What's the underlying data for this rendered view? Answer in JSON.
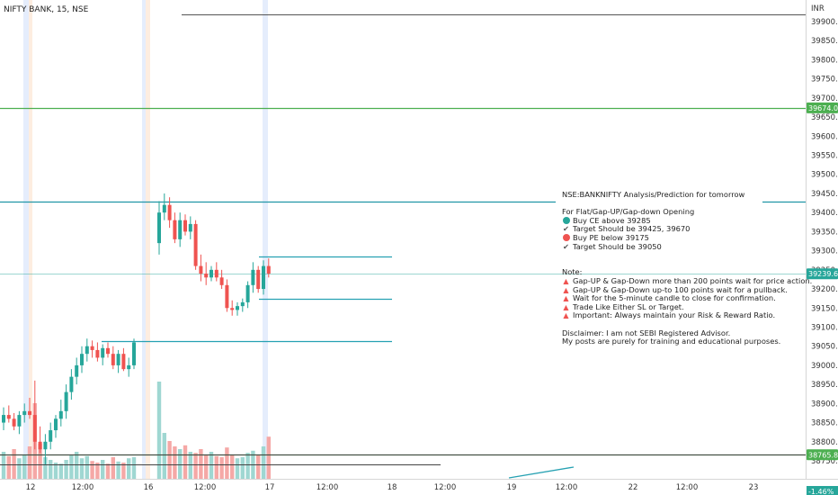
{
  "chart_data": {
    "type": "candlestick",
    "title": "NIFTY BANK, 15, NSE",
    "currency_label": "INR",
    "x_ticks": [
      "12",
      "12:00",
      "16",
      "12:00",
      "17",
      "12:00",
      "18",
      "12:00",
      "19",
      "12:00",
      "22",
      "12:00",
      "23"
    ],
    "y_ticks": [
      "39900.00",
      "39850.00",
      "39800.00",
      "39750.00",
      "39700.00",
      "39650.00",
      "39600.00",
      "39550.00",
      "39500.00",
      "39450.00",
      "39400.00",
      "39350.00",
      "39300.00",
      "39250.00",
      "39200.00",
      "39150.00",
      "39100.00",
      "39050.00",
      "39000.00",
      "38950.00",
      "38900.00",
      "38850.00",
      "38800.00",
      "38750.00"
    ],
    "ylim": [
      38710,
      39925
    ],
    "candles": [
      {
        "o": 38850,
        "h": 38890,
        "l": 38830,
        "c": 38870
      },
      {
        "o": 38870,
        "h": 38895,
        "l": 38850,
        "c": 38860
      },
      {
        "o": 38860,
        "h": 38875,
        "l": 38830,
        "c": 38840
      },
      {
        "o": 38840,
        "h": 38880,
        "l": 38820,
        "c": 38870
      },
      {
        "o": 38870,
        "h": 38900,
        "l": 38850,
        "c": 38880
      },
      {
        "o": 38880,
        "h": 38915,
        "l": 38860,
        "c": 38870
      },
      {
        "o": 38870,
        "h": 38960,
        "l": 38780,
        "c": 38800
      },
      {
        "o": 38800,
        "h": 38840,
        "l": 38770,
        "c": 38780
      },
      {
        "o": 38780,
        "h": 38820,
        "l": 38740,
        "c": 38800
      },
      {
        "o": 38800,
        "h": 38850,
        "l": 38780,
        "c": 38830
      },
      {
        "o": 38830,
        "h": 38870,
        "l": 38810,
        "c": 38860
      },
      {
        "o": 38860,
        "h": 38910,
        "l": 38840,
        "c": 38880
      },
      {
        "o": 38880,
        "h": 38950,
        "l": 38860,
        "c": 38930
      },
      {
        "o": 38930,
        "h": 38990,
        "l": 38910,
        "c": 38970
      },
      {
        "o": 38970,
        "h": 39020,
        "l": 38950,
        "c": 39000
      },
      {
        "o": 39000,
        "h": 39050,
        "l": 38980,
        "c": 39030
      },
      {
        "o": 39030,
        "h": 39070,
        "l": 39010,
        "c": 39050
      },
      {
        "o": 39050,
        "h": 39065,
        "l": 39020,
        "c": 39040
      },
      {
        "o": 39040,
        "h": 39060,
        "l": 39010,
        "c": 39020
      },
      {
        "o": 39020,
        "h": 39055,
        "l": 39000,
        "c": 39045
      },
      {
        "o": 39045,
        "h": 39060,
        "l": 39020,
        "c": 39030
      },
      {
        "o": 39030,
        "h": 39050,
        "l": 38990,
        "c": 39000
      },
      {
        "o": 39000,
        "h": 39040,
        "l": 38980,
        "c": 39030
      },
      {
        "o": 39030,
        "h": 39045,
        "l": 38985,
        "c": 38990
      },
      {
        "o": 38990,
        "h": 39020,
        "l": 38970,
        "c": 39000
      },
      {
        "o": 39000,
        "h": 39070,
        "l": 38990,
        "c": 39060
      },
      {
        "o": 39320,
        "h": 39430,
        "l": 39290,
        "c": 39400
      },
      {
        "o": 39400,
        "h": 39450,
        "l": 39380,
        "c": 39420
      },
      {
        "o": 39420,
        "h": 39440,
        "l": 39360,
        "c": 39380
      },
      {
        "o": 39380,
        "h": 39400,
        "l": 39320,
        "c": 39330
      },
      {
        "o": 39330,
        "h": 39400,
        "l": 39310,
        "c": 39380
      },
      {
        "o": 39380,
        "h": 39395,
        "l": 39340,
        "c": 39350
      },
      {
        "o": 39350,
        "h": 39390,
        "l": 39330,
        "c": 39370
      },
      {
        "o": 39370,
        "h": 39380,
        "l": 39250,
        "c": 39260
      },
      {
        "o": 39260,
        "h": 39290,
        "l": 39220,
        "c": 39240
      },
      {
        "o": 39240,
        "h": 39270,
        "l": 39210,
        "c": 39230
      },
      {
        "o": 39230,
        "h": 39260,
        "l": 39220,
        "c": 39250
      },
      {
        "o": 39250,
        "h": 39270,
        "l": 39220,
        "c": 39230
      },
      {
        "o": 39230,
        "h": 39250,
        "l": 39200,
        "c": 39210
      },
      {
        "o": 39210,
        "h": 39225,
        "l": 39140,
        "c": 39150
      },
      {
        "o": 39150,
        "h": 39170,
        "l": 39130,
        "c": 39145
      },
      {
        "o": 39145,
        "h": 39165,
        "l": 39130,
        "c": 39155
      },
      {
        "o": 39155,
        "h": 39175,
        "l": 39140,
        "c": 39165
      },
      {
        "o": 39165,
        "h": 39220,
        "l": 39150,
        "c": 39210
      },
      {
        "o": 39210,
        "h": 39270,
        "l": 39190,
        "c": 39250
      },
      {
        "o": 39250,
        "h": 39260,
        "l": 39190,
        "c": 39200
      },
      {
        "o": 39200,
        "h": 39275,
        "l": 39185,
        "c": 39260
      },
      {
        "o": 39260,
        "h": 39280,
        "l": 39230,
        "c": 39240
      }
    ],
    "volume": [
      50,
      42,
      55,
      38,
      45,
      60,
      140,
      65,
      40,
      35,
      30,
      28,
      35,
      45,
      50,
      38,
      42,
      33,
      30,
      35,
      28,
      40,
      32,
      30,
      38,
      40,
      180,
      85,
      70,
      60,
      55,
      62,
      50,
      48,
      55,
      45,
      50,
      42,
      40,
      58,
      45,
      38,
      40,
      48,
      52,
      45,
      60,
      78
    ],
    "horizontal_levels": [
      {
        "price": 39674.05,
        "color": "#4caf50",
        "label": "39674.05"
      },
      {
        "price": 39428,
        "color": "#2196a6"
      },
      {
        "price": 39285,
        "color": "#26a1b2"
      },
      {
        "price": 39175,
        "color": "#26a1b2"
      },
      {
        "price": 39063,
        "color": "#26a1b2"
      },
      {
        "price": 39239.65,
        "color": "#26a69a",
        "label": "39239.65"
      },
      {
        "price": 38765.85,
        "color": "#4caf50",
        "label": "38765.85"
      }
    ],
    "hidden_axis_label": "-1.46%"
  },
  "notes": {
    "heading": "NSE:BANKNIFTY Analysis/Prediction for tomorrow",
    "opening_title": "For Flat/Gap-UP/Gap-down Opening",
    "buy_ce": "Buy CE above 39285",
    "target_ce": "Target Should be 39425, 39670",
    "buy_pe": "Buy PE below 39175",
    "target_pe": "Target Should be 39050",
    "note_title": "Note:",
    "note_1": "Gap-UP & Gap-Down more than 200 points wait for price action.",
    "note_2": "Gap-UP & Gap-Down up-to 100 points wait for a pullback.",
    "note_3": "Wait for the 5-minute candle to close for confirmation.",
    "note_4": "Trade Like Either SL or Target.",
    "note_5": "Important: Always maintain your Risk & Reward Ratio.",
    "disclaimer_1": "Disclaimer: I am not SEBI Registered Advisor.",
    "disclaimer_2": "My posts are purely for training and educational purposes."
  },
  "colors": {
    "up": "#26a69a",
    "down": "#ef5350",
    "up_volume": "#9fd7d2",
    "down_volume": "#f5a8a6",
    "session_blue": "#dfe8fb",
    "session_orange": "#fde9d8"
  }
}
